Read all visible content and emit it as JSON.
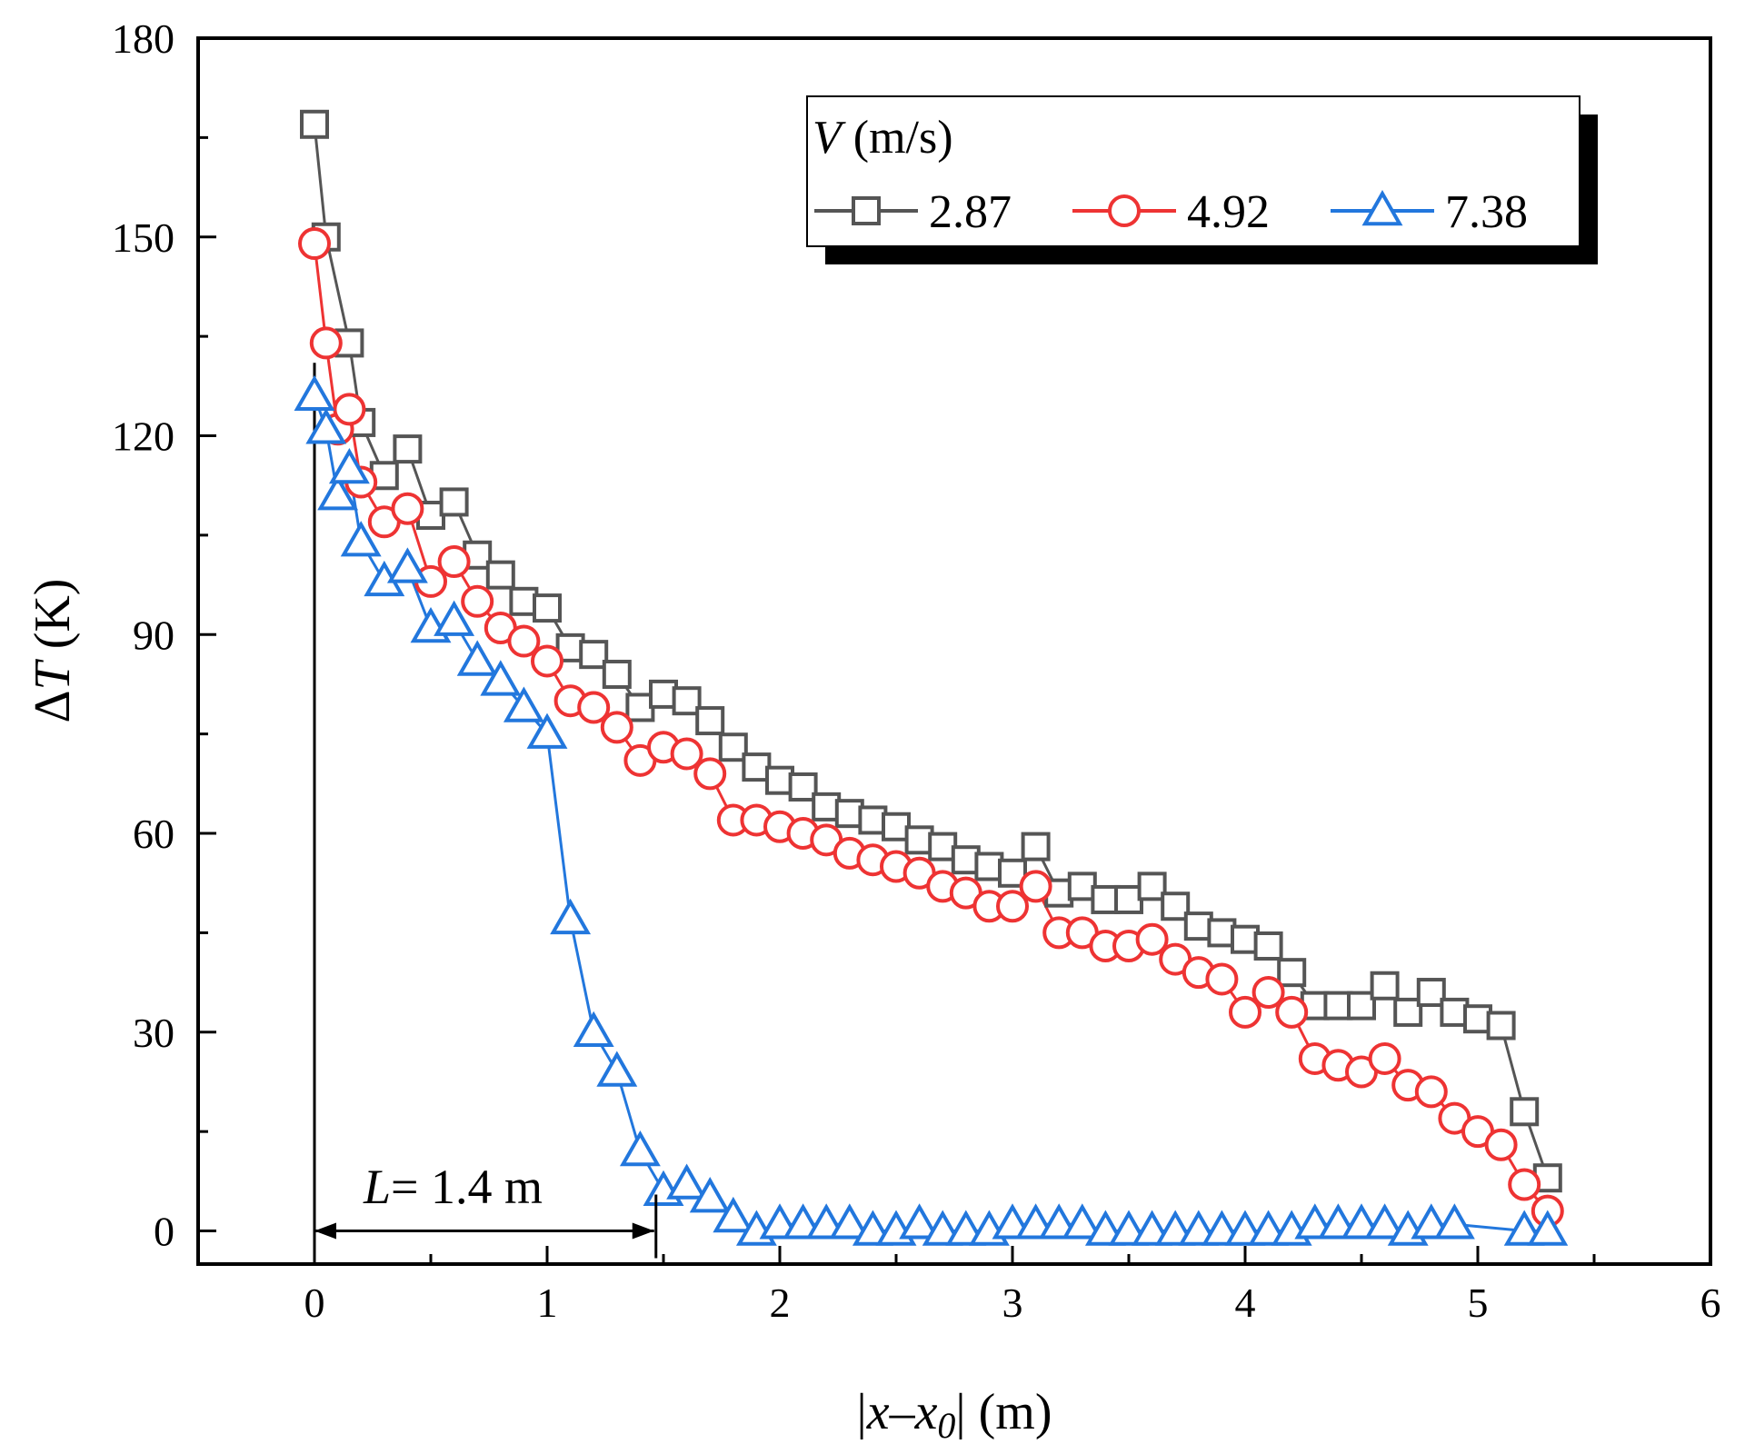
{
  "chart_data": {
    "type": "line",
    "xlabel": "|x–x0| (m)",
    "xlabel_parts": [
      "|",
      "x",
      "–",
      "x",
      "0",
      "| (m)"
    ],
    "ylabel": "ΔT (K)",
    "ylabel_parts": [
      "Δ",
      "T",
      " (K)"
    ],
    "xlim": [
      -0.5,
      6
    ],
    "ylim": [
      -5,
      180
    ],
    "xticks": [
      0,
      1,
      2,
      3,
      4,
      5,
      6
    ],
    "yticks": [
      0,
      30,
      60,
      90,
      120,
      150,
      180
    ],
    "legend": {
      "title_var": "V",
      "title_unit": " (m/s)",
      "position": "top-right"
    },
    "annotation": {
      "label_var": "L",
      "label_text": "= 1.4 m",
      "x_start": 0,
      "x_end": 1.46,
      "y": 0
    },
    "series": [
      {
        "name": "2.87",
        "color": "#555555",
        "marker": "square",
        "x": [
          0,
          0.05,
          0.15,
          0.2,
          0.3,
          0.4,
          0.5,
          0.6,
          0.7,
          0.8,
          0.9,
          1.0,
          1.1,
          1.2,
          1.3,
          1.4,
          1.5,
          1.6,
          1.7,
          1.8,
          1.9,
          2.0,
          2.1,
          2.2,
          2.3,
          2.4,
          2.5,
          2.6,
          2.7,
          2.8,
          2.9,
          3.0,
          3.1,
          3.2,
          3.3,
          3.4,
          3.5,
          3.6,
          3.7,
          3.8,
          3.9,
          4.0,
          4.1,
          4.2,
          4.3,
          4.4,
          4.5,
          4.6,
          4.7,
          4.8,
          4.9,
          5.0,
          5.1,
          5.2,
          5.3
        ],
        "y": [
          167,
          150,
          134,
          122,
          114,
          118,
          108,
          110,
          102,
          99,
          95,
          94,
          88,
          87,
          84,
          79,
          81,
          80,
          77,
          73,
          70,
          68,
          67,
          64,
          63,
          62,
          61,
          59,
          58,
          56,
          55,
          54,
          58,
          51,
          52,
          50,
          50,
          52,
          49,
          46,
          45,
          44,
          43,
          39,
          34,
          34,
          34,
          37,
          33,
          36,
          33,
          32,
          31,
          18,
          8
        ]
      },
      {
        "name": "4.92",
        "color": "#ee3333",
        "marker": "circle",
        "x": [
          0,
          0.05,
          0.1,
          0.15,
          0.2,
          0.3,
          0.4,
          0.5,
          0.6,
          0.7,
          0.8,
          0.9,
          1.0,
          1.1,
          1.2,
          1.3,
          1.4,
          1.5,
          1.6,
          1.7,
          1.8,
          1.9,
          2.0,
          2.1,
          2.2,
          2.3,
          2.4,
          2.5,
          2.6,
          2.7,
          2.8,
          2.9,
          3.0,
          3.1,
          3.2,
          3.3,
          3.4,
          3.5,
          3.6,
          3.7,
          3.8,
          3.9,
          4.0,
          4.1,
          4.2,
          4.3,
          4.4,
          4.5,
          4.6,
          4.7,
          4.8,
          4.9,
          5.0,
          5.1,
          5.2,
          5.3
        ],
        "y": [
          149,
          134,
          121,
          124,
          113,
          107,
          109,
          98,
          101,
          95,
          91,
          89,
          86,
          80,
          79,
          76,
          71,
          73,
          72,
          69,
          62,
          62,
          61,
          60,
          59,
          57,
          56,
          55,
          54,
          52,
          51,
          49,
          49,
          52,
          45,
          45,
          43,
          43,
          44,
          41,
          39,
          38,
          33,
          36,
          33,
          26,
          25,
          24,
          26,
          22,
          21,
          17,
          15,
          13,
          7,
          3
        ]
      },
      {
        "name": "7.38",
        "color": "#2277dd",
        "marker": "triangle",
        "x": [
          0,
          0.05,
          0.1,
          0.15,
          0.2,
          0.3,
          0.4,
          0.5,
          0.6,
          0.7,
          0.8,
          0.9,
          1.0,
          1.1,
          1.2,
          1.3,
          1.4,
          1.5,
          1.6,
          1.7,
          1.8,
          1.9,
          2.0,
          2.1,
          2.2,
          2.3,
          2.4,
          2.5,
          2.6,
          2.7,
          2.8,
          2.9,
          3.0,
          3.1,
          3.2,
          3.3,
          3.4,
          3.5,
          3.6,
          3.7,
          3.8,
          3.9,
          4.0,
          4.1,
          4.2,
          4.3,
          4.4,
          4.5,
          4.6,
          4.7,
          4.8,
          4.9,
          5.2,
          5.3
        ],
        "y": [
          126,
          121,
          111,
          115,
          104,
          98,
          100,
          91,
          92,
          86,
          83,
          79,
          75,
          47,
          30,
          24,
          12,
          6,
          7,
          5,
          2,
          0,
          1,
          1,
          1,
          1,
          0,
          0,
          1,
          0,
          0,
          0,
          1,
          1,
          1,
          1,
          0,
          0,
          0,
          0,
          0,
          0,
          0,
          0,
          0,
          1,
          1,
          1,
          1,
          0,
          1,
          1,
          0,
          0
        ]
      }
    ]
  }
}
